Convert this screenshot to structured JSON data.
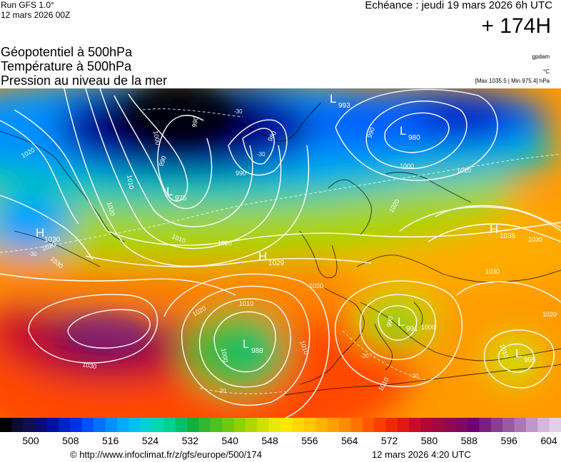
{
  "header": {
    "run_line1": "Run GFS 1.0°",
    "run_line2": "12 mars 2026 00Z",
    "echeance": "Echéance : jeudi 19 mars 2026 6h UTC",
    "forecast_hour": "+ 174H"
  },
  "variables": {
    "line1": "Géopotentiel à 500hPa",
    "line2": "Température à 500hPa",
    "line3": "Pression au niveau de la mer"
  },
  "units": {
    "geopotential": "gpdam",
    "temperature": "°C",
    "pressure_range": "[Max 1035.5 | Min 975.4] hPa"
  },
  "pressure_centers": [
    {
      "type": "L",
      "value": "993"
    },
    {
      "type": "L",
      "value": "980"
    },
    {
      "type": "L",
      "value": "975"
    },
    {
      "type": "H",
      "value": "1035"
    },
    {
      "type": "H",
      "value": "1029"
    },
    {
      "type": "H",
      "value": "1030"
    },
    {
      "type": "L",
      "value": "991"
    },
    {
      "type": "L",
      "value": "988"
    },
    {
      "type": "L",
      "value": "995"
    }
  ],
  "isobar_labels": [
    "1020",
    "1020",
    "1010",
    "1000",
    "990",
    "990",
    "990",
    "980",
    "990",
    "1000",
    "1010",
    "1020",
    "1030",
    "1010",
    "1020",
    "1030",
    "1020",
    "1020",
    "1000",
    "1010",
    "1010",
    "1020",
    "1030",
    "990",
    "1000",
    "1010",
    "1020",
    "1010",
    "1030"
  ],
  "temperature_labels": [
    "-30",
    "-30",
    "-30",
    "-20",
    "-20",
    "-20"
  ],
  "colorscale": {
    "ticks": [
      "500",
      "508",
      "516",
      "524",
      "532",
      "540",
      "548",
      "556",
      "564",
      "572",
      "580",
      "588",
      "596",
      "604"
    ],
    "colors": [
      "#000000",
      "#0c0c30",
      "#101050",
      "#0a0a78",
      "#0010a0",
      "#0020c8",
      "#0030e8",
      "#0050ff",
      "#0070ff",
      "#0090ff",
      "#00aaff",
      "#00c0f0",
      "#00d2d0",
      "#00d8b0",
      "#00d090",
      "#00c070",
      "#10b040",
      "#30b830",
      "#50c020",
      "#70c810",
      "#90d000",
      "#b0d800",
      "#d0e000",
      "#e8e800",
      "#ffe800",
      "#ffd800",
      "#ffc800",
      "#ffb400",
      "#ffa000",
      "#ff8c00",
      "#ff7400",
      "#ff5800",
      "#ff3c00",
      "#f02800",
      "#e01818",
      "#c80c28",
      "#b00830",
      "#a00840",
      "#900850",
      "#800860",
      "#700070",
      "#781f80",
      "#8a3c90",
      "#9a5aa0",
      "#ac78b4",
      "#c098c8",
      "#d4b8dc",
      "#e0d0e8"
    ]
  },
  "footer": {
    "copyright": "© http://www.infoclimat.fr/z/gfs/europe/500/174",
    "timestamp": "12 mars 2026  4:20 UTC"
  }
}
